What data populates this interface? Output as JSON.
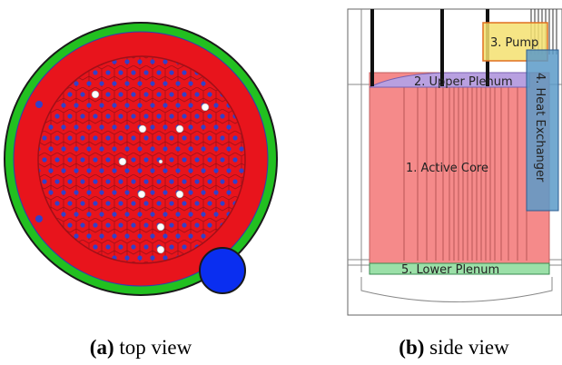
{
  "panels": [
    {
      "caption_label": "(a)",
      "caption_text": "top view"
    },
    {
      "caption_label": "(b)",
      "caption_text": "side view",
      "regions": [
        "1. Active Core",
        "2. Upper Plenum",
        "3. Pump",
        "4. Heat Exchanger",
        "5. Lower Plenum"
      ]
    }
  ]
}
